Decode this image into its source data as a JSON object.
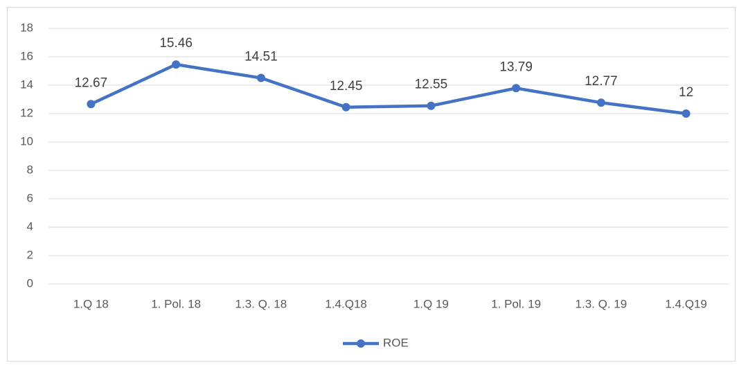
{
  "chart_data": {
    "type": "line",
    "categories": [
      "1.Q 18",
      "1. Pol. 18",
      "1.3. Q. 18",
      "1.4.Q18",
      "1.Q 19",
      "1. Pol. 19",
      "1.3. Q. 19",
      "1.4.Q19"
    ],
    "series": [
      {
        "name": "ROE",
        "color": "#4472c4",
        "values": [
          12.67,
          15.46,
          14.51,
          12.45,
          12.55,
          13.79,
          12.77,
          12
        ]
      }
    ],
    "ylim": [
      0,
      18
    ],
    "yticks": [
      0,
      2,
      4,
      6,
      8,
      10,
      12,
      14,
      16,
      18
    ],
    "grid": true,
    "legend": "bottom",
    "data_labels": true
  }
}
